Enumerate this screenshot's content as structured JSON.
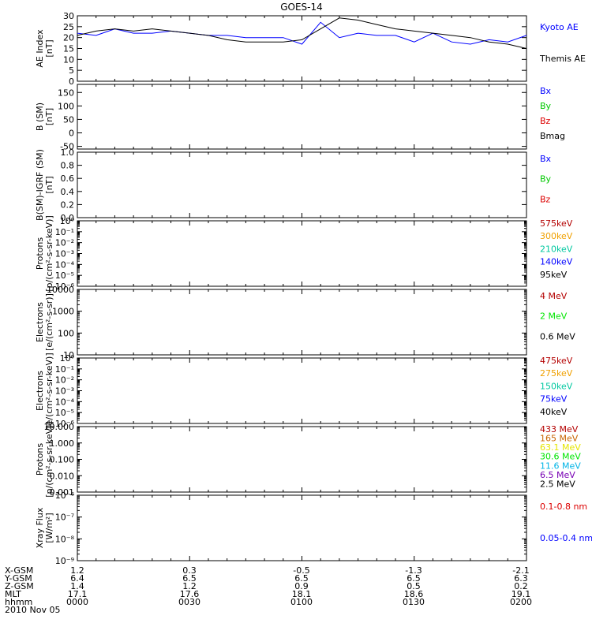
{
  "title": "GOES-14",
  "colors": {
    "blue": "#0000ff",
    "green": "#00c800",
    "red": "#dc0000",
    "black": "#000000",
    "darkred": "#b40000",
    "orange": "#f0a000",
    "teal": "#00c8a0",
    "cyan": "#00b4e6",
    "purple": "#7800b4",
    "yellow": "#e6e600",
    "brown": "#c86400",
    "lime": "#00e600"
  },
  "chart_data": [
    {
      "type": "line",
      "ylabel": "AE Index\n[nT]",
      "ylim": [
        0,
        30
      ],
      "yticks": [
        "0",
        "5",
        "10",
        "15",
        "20",
        "25",
        "30"
      ],
      "legend": [
        {
          "label": "Kyoto AE",
          "color": "#0000ff"
        },
        {
          "label": "Themis AE",
          "color": "#000000"
        }
      ],
      "x_minutes": [
        0,
        5,
        10,
        15,
        20,
        25,
        30,
        35,
        40,
        45,
        50,
        55,
        60,
        65,
        70,
        75,
        80,
        85,
        90,
        95,
        100,
        105,
        110,
        115,
        120
      ],
      "series": [
        {
          "name": "Kyoto AE",
          "color": "#0000ff",
          "values": [
            22,
            21,
            24,
            22,
            22,
            23,
            22,
            21,
            21,
            20,
            20,
            20,
            17,
            27,
            20,
            22,
            21,
            21,
            18,
            22,
            18,
            17,
            19,
            18,
            21
          ]
        },
        {
          "name": "Themis AE",
          "color": "#000000",
          "values": [
            21,
            23,
            24,
            23,
            24,
            23,
            22,
            21,
            19,
            18,
            18,
            18,
            19,
            24,
            29,
            28,
            26,
            24,
            23,
            22,
            21,
            20,
            18,
            17,
            15
          ]
        }
      ]
    },
    {
      "type": "line",
      "ylabel": "B (SM)\n[nT]",
      "ylim": [
        -60,
        180
      ],
      "yticks": [
        "-50",
        "0",
        "50",
        "100",
        "150"
      ],
      "legend": [
        {
          "label": "Bx",
          "color": "#0000ff"
        },
        {
          "label": "By",
          "color": "#00c800"
        },
        {
          "label": "Bz",
          "color": "#dc0000"
        },
        {
          "label": "Bmag",
          "color": "#000000"
        }
      ]
    },
    {
      "type": "line",
      "ylabel": "B(SM)-IGRF (SM)\n[nT]",
      "ylim": [
        0,
        1
      ],
      "yticks": [
        "0.0",
        "0.2",
        "0.4",
        "0.6",
        "0.8",
        "1.0"
      ],
      "legend": [
        {
          "label": "Bx",
          "color": "#0000ff"
        },
        {
          "label": "By",
          "color": "#00c800"
        },
        {
          "label": "Bz",
          "color": "#dc0000"
        }
      ]
    },
    {
      "type": "line",
      "ylabel": "Protons\n[p/(cm²-s-sr-keV)]",
      "yscale": "log",
      "yticks": [
        "10⁻⁶",
        "10⁻⁵",
        "10⁻⁴",
        "10⁻³",
        "10⁻²",
        "10⁻¹",
        "10⁰"
      ],
      "legend": [
        {
          "label": "575keV",
          "color": "#b40000"
        },
        {
          "label": "300keV",
          "color": "#f0a000"
        },
        {
          "label": "210keV",
          "color": "#00c8a0"
        },
        {
          "label": "140keV",
          "color": "#0000ff"
        },
        {
          "label": "95keV",
          "color": "#000000"
        }
      ]
    },
    {
      "type": "line",
      "ylabel": "Electrons\n[e/(cm²-s-sr)]",
      "yscale": "log",
      "yticks": [
        "10",
        "100",
        "1000",
        "10000"
      ],
      "legend": [
        {
          "label": "4 MeV",
          "color": "#b40000"
        },
        {
          "label": "2 MeV",
          "color": "#00e600"
        },
        {
          "label": "0.6 MeV",
          "color": "#000000"
        }
      ]
    },
    {
      "type": "line",
      "ylabel": "Electrons\n[e/(cm²-s-sr-keV)]",
      "yscale": "log",
      "yticks": [
        "10⁻⁶",
        "10⁻⁵",
        "10⁻⁴",
        "10⁻³",
        "10⁻²",
        "10⁻¹",
        "10⁰"
      ],
      "legend": [
        {
          "label": "475keV",
          "color": "#b40000"
        },
        {
          "label": "275keV",
          "color": "#f0a000"
        },
        {
          "label": "150keV",
          "color": "#00c8a0"
        },
        {
          "label": "75keV",
          "color": "#0000ff"
        },
        {
          "label": "40keV",
          "color": "#000000"
        }
      ]
    },
    {
      "type": "line",
      "ylabel": "Protons\n[p/(cm²-s-sr-keV)]",
      "yscale": "log",
      "yticks": [
        "0.001",
        "0.010",
        "0.100",
        "1.000",
        "10.000"
      ],
      "legend": [
        {
          "label": "433 MeV",
          "color": "#b40000"
        },
        {
          "label": "165 MeV",
          "color": "#c86400"
        },
        {
          "label": "63.1 MeV",
          "color": "#e6e600"
        },
        {
          "label": "30.6 MeV",
          "color": "#00e600"
        },
        {
          "label": "11.6 MeV",
          "color": "#00b4e6"
        },
        {
          "label": "6.5 MeV",
          "color": "#7800b4"
        },
        {
          "label": "2.5 MeV",
          "color": "#000000"
        }
      ]
    },
    {
      "type": "line",
      "ylabel": "Xray Flux\n[W/m²]",
      "yscale": "log",
      "yticks": [
        "10⁻⁹",
        "10⁻⁸",
        "10⁻⁷",
        "10⁻⁶"
      ],
      "legend": [
        {
          "label": "0.1-0.8 nm",
          "color": "#dc0000"
        },
        {
          "label": "0.05-0.4 nm",
          "color": "#0000ff"
        }
      ]
    }
  ],
  "footer": {
    "rows": [
      {
        "label": "X-GSM",
        "values": [
          "1.2",
          "0.3",
          "-0.5",
          "-1.3",
          "-2.1"
        ]
      },
      {
        "label": "Y-GSM",
        "values": [
          "6.4",
          "6.5",
          "6.5",
          "6.5",
          "6.3"
        ]
      },
      {
        "label": "Z-GSM",
        "values": [
          "1.4",
          "1.2",
          "0.9",
          "0.5",
          "0.2"
        ]
      },
      {
        "label": "MLT",
        "values": [
          "17.1",
          "17.6",
          "18.1",
          "18.6",
          "19.1"
        ]
      },
      {
        "label": "hhmm",
        "values": [
          "0000",
          "0030",
          "0100",
          "0130",
          "0200"
        ]
      }
    ],
    "date": "2010 Nov 05"
  }
}
